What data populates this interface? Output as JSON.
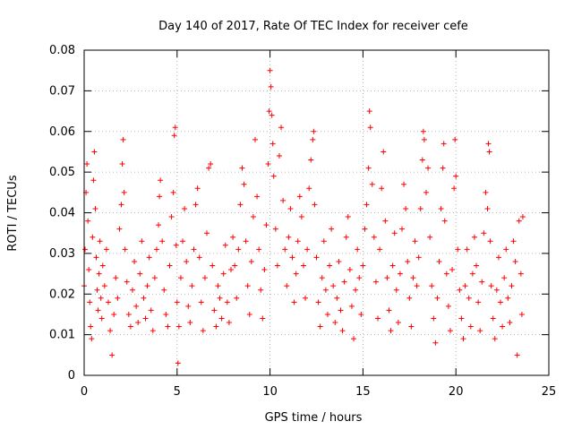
{
  "chart_data": {
    "type": "scatter",
    "title": "Day 140 of 2017, Rate Of TEC Index for receiver cefe",
    "xlabel": "GPS time / hours",
    "ylabel": "ROTI / TECUs",
    "xlim": [
      0,
      25
    ],
    "ylim": [
      0,
      0.08
    ],
    "xticks": [
      0,
      5,
      10,
      15,
      20,
      25
    ],
    "xtick_labels": [
      "0",
      "5",
      "10",
      "15",
      "20",
      "25"
    ],
    "yticks": [
      0,
      0.01,
      0.02,
      0.03,
      0.04,
      0.05,
      0.06,
      0.07,
      0.08
    ],
    "ytick_labels": [
      "0",
      "0.01",
      "0.02",
      "0.03",
      "0.04",
      "0.05",
      "0.06",
      "0.07",
      "0.08"
    ],
    "grid": true,
    "marker": "+",
    "marker_color": "#ff0000",
    "series": [
      {
        "name": "ROTI",
        "points": [
          [
            0.0,
            0.022
          ],
          [
            0.05,
            0.031
          ],
          [
            0.1,
            0.045
          ],
          [
            0.15,
            0.052
          ],
          [
            0.2,
            0.038
          ],
          [
            0.25,
            0.026
          ],
          [
            0.3,
            0.018
          ],
          [
            0.35,
            0.012
          ],
          [
            0.4,
            0.009
          ],
          [
            0.45,
            0.034
          ],
          [
            0.5,
            0.048
          ],
          [
            0.55,
            0.055
          ],
          [
            0.6,
            0.041
          ],
          [
            0.65,
            0.029
          ],
          [
            0.7,
            0.021
          ],
          [
            0.75,
            0.016
          ],
          [
            0.8,
            0.025
          ],
          [
            0.85,
            0.033
          ],
          [
            0.9,
            0.019
          ],
          [
            0.95,
            0.014
          ],
          [
            1.0,
            0.027
          ],
          [
            1.1,
            0.022
          ],
          [
            1.2,
            0.031
          ],
          [
            1.3,
            0.018
          ],
          [
            1.4,
            0.011
          ],
          [
            1.5,
            0.005
          ],
          [
            1.6,
            0.015
          ],
          [
            1.7,
            0.024
          ],
          [
            1.8,
            0.019
          ],
          [
            1.9,
            0.036
          ],
          [
            2.0,
            0.042
          ],
          [
            2.05,
            0.052
          ],
          [
            2.1,
            0.058
          ],
          [
            2.15,
            0.045
          ],
          [
            2.2,
            0.031
          ],
          [
            2.3,
            0.023
          ],
          [
            2.4,
            0.015
          ],
          [
            2.5,
            0.012
          ],
          [
            2.6,
            0.021
          ],
          [
            2.7,
            0.028
          ],
          [
            2.8,
            0.017
          ],
          [
            2.9,
            0.013
          ],
          [
            3.0,
            0.025
          ],
          [
            3.1,
            0.033
          ],
          [
            3.2,
            0.019
          ],
          [
            3.3,
            0.014
          ],
          [
            3.4,
            0.022
          ],
          [
            3.5,
            0.029
          ],
          [
            3.6,
            0.016
          ],
          [
            3.7,
            0.011
          ],
          [
            3.8,
            0.024
          ],
          [
            3.9,
            0.031
          ],
          [
            4.0,
            0.037
          ],
          [
            4.05,
            0.044
          ],
          [
            4.1,
            0.048
          ],
          [
            4.2,
            0.033
          ],
          [
            4.3,
            0.021
          ],
          [
            4.4,
            0.015
          ],
          [
            4.5,
            0.012
          ],
          [
            4.6,
            0.027
          ],
          [
            4.7,
            0.039
          ],
          [
            4.8,
            0.045
          ],
          [
            4.85,
            0.059
          ],
          [
            4.9,
            0.061
          ],
          [
            4.95,
            0.032
          ],
          [
            5.0,
            0.018
          ],
          [
            5.05,
            0.003
          ],
          [
            5.1,
            0.012
          ],
          [
            5.2,
            0.024
          ],
          [
            5.3,
            0.033
          ],
          [
            5.4,
            0.041
          ],
          [
            5.5,
            0.028
          ],
          [
            5.6,
            0.017
          ],
          [
            5.7,
            0.013
          ],
          [
            5.8,
            0.022
          ],
          [
            5.9,
            0.031
          ],
          [
            6.0,
            0.042
          ],
          [
            6.1,
            0.046
          ],
          [
            6.2,
            0.029
          ],
          [
            6.3,
            0.018
          ],
          [
            6.4,
            0.011
          ],
          [
            6.5,
            0.024
          ],
          [
            6.6,
            0.035
          ],
          [
            6.7,
            0.051
          ],
          [
            6.8,
            0.052
          ],
          [
            6.9,
            0.027
          ],
          [
            7.0,
            0.016
          ],
          [
            7.1,
            0.012
          ],
          [
            7.2,
            0.022
          ],
          [
            7.3,
            0.019
          ],
          [
            7.4,
            0.014
          ],
          [
            7.5,
            0.025
          ],
          [
            7.6,
            0.032
          ],
          [
            7.7,
            0.018
          ],
          [
            7.8,
            0.013
          ],
          [
            7.9,
            0.026
          ],
          [
            8.0,
            0.034
          ],
          [
            8.1,
            0.027
          ],
          [
            8.2,
            0.019
          ],
          [
            8.3,
            0.031
          ],
          [
            8.4,
            0.042
          ],
          [
            8.5,
            0.051
          ],
          [
            8.6,
            0.047
          ],
          [
            8.7,
            0.033
          ],
          [
            8.8,
            0.022
          ],
          [
            8.9,
            0.015
          ],
          [
            9.0,
            0.028
          ],
          [
            9.1,
            0.039
          ],
          [
            9.2,
            0.058
          ],
          [
            9.3,
            0.044
          ],
          [
            9.4,
            0.031
          ],
          [
            9.5,
            0.021
          ],
          [
            9.6,
            0.014
          ],
          [
            9.7,
            0.026
          ],
          [
            9.8,
            0.037
          ],
          [
            9.9,
            0.052
          ],
          [
            9.95,
            0.065
          ],
          [
            10.0,
            0.075
          ],
          [
            10.05,
            0.071
          ],
          [
            10.1,
            0.064
          ],
          [
            10.15,
            0.057
          ],
          [
            10.2,
            0.049
          ],
          [
            10.3,
            0.036
          ],
          [
            10.4,
            0.027
          ],
          [
            10.5,
            0.054
          ],
          [
            10.6,
            0.061
          ],
          [
            10.7,
            0.043
          ],
          [
            10.8,
            0.031
          ],
          [
            10.9,
            0.022
          ],
          [
            11.0,
            0.034
          ],
          [
            11.1,
            0.041
          ],
          [
            11.2,
            0.029
          ],
          [
            11.3,
            0.018
          ],
          [
            11.4,
            0.025
          ],
          [
            11.5,
            0.033
          ],
          [
            11.6,
            0.044
          ],
          [
            11.7,
            0.039
          ],
          [
            11.8,
            0.027
          ],
          [
            11.9,
            0.019
          ],
          [
            12.0,
            0.031
          ],
          [
            12.1,
            0.046
          ],
          [
            12.2,
            0.053
          ],
          [
            12.3,
            0.058
          ],
          [
            12.35,
            0.06
          ],
          [
            12.4,
            0.042
          ],
          [
            12.5,
            0.029
          ],
          [
            12.6,
            0.018
          ],
          [
            12.7,
            0.012
          ],
          [
            12.8,
            0.024
          ],
          [
            12.9,
            0.033
          ],
          [
            13.0,
            0.021
          ],
          [
            13.1,
            0.015
          ],
          [
            13.2,
            0.027
          ],
          [
            13.3,
            0.036
          ],
          [
            13.4,
            0.022
          ],
          [
            13.5,
            0.013
          ],
          [
            13.6,
            0.019
          ],
          [
            13.7,
            0.028
          ],
          [
            13.8,
            0.016
          ],
          [
            13.9,
            0.011
          ],
          [
            14.0,
            0.023
          ],
          [
            14.1,
            0.034
          ],
          [
            14.2,
            0.039
          ],
          [
            14.3,
            0.026
          ],
          [
            14.4,
            0.017
          ],
          [
            14.5,
            0.009
          ],
          [
            14.6,
            0.021
          ],
          [
            14.7,
            0.031
          ],
          [
            14.8,
            0.024
          ],
          [
            14.9,
            0.015
          ],
          [
            15.0,
            0.027
          ],
          [
            15.1,
            0.036
          ],
          [
            15.2,
            0.042
          ],
          [
            15.3,
            0.051
          ],
          [
            15.35,
            0.065
          ],
          [
            15.4,
            0.061
          ],
          [
            15.5,
            0.047
          ],
          [
            15.6,
            0.034
          ],
          [
            15.7,
            0.023
          ],
          [
            15.8,
            0.014
          ],
          [
            15.9,
            0.031
          ],
          [
            16.0,
            0.046
          ],
          [
            16.1,
            0.055
          ],
          [
            16.2,
            0.038
          ],
          [
            16.3,
            0.024
          ],
          [
            16.4,
            0.016
          ],
          [
            16.5,
            0.011
          ],
          [
            16.6,
            0.027
          ],
          [
            16.7,
            0.035
          ],
          [
            16.8,
            0.021
          ],
          [
            16.9,
            0.013
          ],
          [
            17.0,
            0.025
          ],
          [
            17.1,
            0.036
          ],
          [
            17.2,
            0.047
          ],
          [
            17.3,
            0.041
          ],
          [
            17.4,
            0.028
          ],
          [
            17.5,
            0.019
          ],
          [
            17.6,
            0.012
          ],
          [
            17.7,
            0.024
          ],
          [
            17.8,
            0.033
          ],
          [
            17.9,
            0.022
          ],
          [
            18.0,
            0.029
          ],
          [
            18.1,
            0.041
          ],
          [
            18.2,
            0.053
          ],
          [
            18.25,
            0.06
          ],
          [
            18.3,
            0.058
          ],
          [
            18.4,
            0.045
          ],
          [
            18.5,
            0.051
          ],
          [
            18.6,
            0.034
          ],
          [
            18.7,
            0.022
          ],
          [
            18.8,
            0.014
          ],
          [
            18.9,
            0.008
          ],
          [
            19.0,
            0.019
          ],
          [
            19.1,
            0.028
          ],
          [
            19.2,
            0.041
          ],
          [
            19.3,
            0.051
          ],
          [
            19.35,
            0.057
          ],
          [
            19.4,
            0.038
          ],
          [
            19.5,
            0.025
          ],
          [
            19.6,
            0.017
          ],
          [
            19.7,
            0.011
          ],
          [
            19.8,
            0.026
          ],
          [
            19.9,
            0.046
          ],
          [
            19.95,
            0.058
          ],
          [
            20.0,
            0.049
          ],
          [
            20.1,
            0.031
          ],
          [
            20.2,
            0.021
          ],
          [
            20.3,
            0.014
          ],
          [
            20.4,
            0.009
          ],
          [
            20.5,
            0.022
          ],
          [
            20.6,
            0.031
          ],
          [
            20.7,
            0.019
          ],
          [
            20.8,
            0.012
          ],
          [
            20.9,
            0.025
          ],
          [
            21.0,
            0.034
          ],
          [
            21.1,
            0.027
          ],
          [
            21.2,
            0.018
          ],
          [
            21.3,
            0.011
          ],
          [
            21.4,
            0.023
          ],
          [
            21.5,
            0.035
          ],
          [
            21.6,
            0.045
          ],
          [
            21.7,
            0.041
          ],
          [
            21.75,
            0.057
          ],
          [
            21.8,
            0.055
          ],
          [
            21.85,
            0.033
          ],
          [
            21.9,
            0.022
          ],
          [
            22.0,
            0.014
          ],
          [
            22.1,
            0.009
          ],
          [
            22.2,
            0.021
          ],
          [
            22.3,
            0.029
          ],
          [
            22.4,
            0.018
          ],
          [
            22.5,
            0.012
          ],
          [
            22.6,
            0.024
          ],
          [
            22.7,
            0.031
          ],
          [
            22.8,
            0.019
          ],
          [
            22.9,
            0.013
          ],
          [
            23.0,
            0.022
          ],
          [
            23.1,
            0.033
          ],
          [
            23.2,
            0.028
          ],
          [
            23.3,
            0.005
          ],
          [
            23.4,
            0.038
          ],
          [
            23.5,
            0.025
          ],
          [
            23.55,
            0.015
          ],
          [
            23.6,
            0.039
          ]
        ]
      }
    ]
  }
}
